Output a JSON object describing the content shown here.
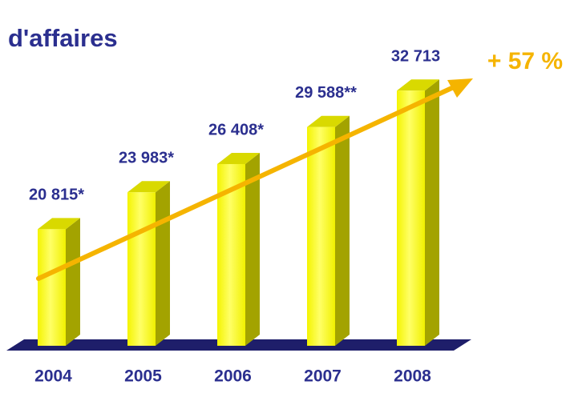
{
  "chart_data": {
    "type": "bar",
    "title": "d'affaires",
    "categories": [
      "2004",
      "2005",
      "2006",
      "2007",
      "2008"
    ],
    "values": [
      20815,
      23983,
      26408,
      29588,
      32713
    ],
    "value_labels": [
      "20 815*",
      "23 983*",
      "26 408*",
      "29 588**",
      "32 713"
    ],
    "color": "#ffff00",
    "ylim": [
      10800,
      35000
    ],
    "annotation": "+ 57 %"
  }
}
